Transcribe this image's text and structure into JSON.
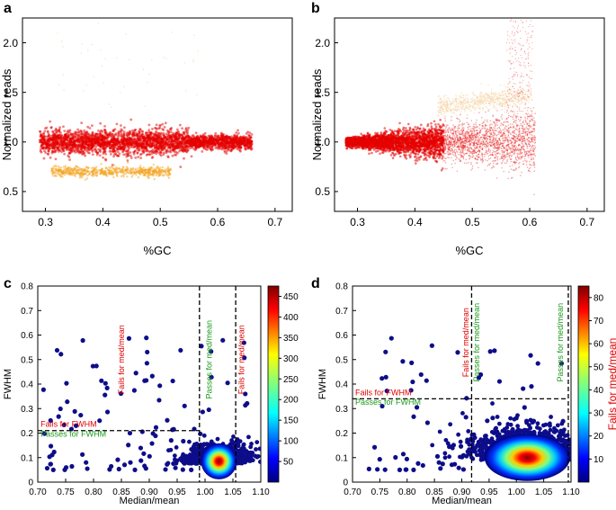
{
  "chart_data": [
    {
      "type": "scatter",
      "panel_label": "a",
      "xlabel": "%GC",
      "ylabel": "Normalized reads",
      "xlim": [
        0.26,
        0.73
      ],
      "ylim": [
        0.3,
        2.25
      ],
      "x_ticks": [
        "0.3",
        "0.4",
        "0.5",
        "0.6",
        "0.7"
      ],
      "x_tick_values": [
        0.3,
        0.4,
        0.5,
        0.6,
        0.7
      ],
      "y_ticks": [
        "0.5",
        "1.0",
        "1.5",
        "2.0"
      ],
      "y_tick_values": [
        0.5,
        1.0,
        1.5,
        2.0
      ],
      "series": [
        {
          "name": "main band",
          "color": "#e60000",
          "x_range": [
            0.29,
            0.66
          ],
          "y_center": 1.0,
          "y_spread": 0.06
        },
        {
          "name": "lower band",
          "color": "#f5a623",
          "x_range": [
            0.31,
            0.52
          ],
          "y_center": 0.7,
          "y_spread": 0.025
        }
      ]
    },
    {
      "type": "scatter",
      "panel_label": "b",
      "xlabel": "%GC",
      "ylabel": "Normalized reads",
      "xlim": [
        0.26,
        0.73
      ],
      "ylim": [
        0.3,
        2.25
      ],
      "x_ticks": [
        "0.3",
        "0.4",
        "0.5",
        "0.6",
        "0.7"
      ],
      "x_tick_values": [
        0.3,
        0.4,
        0.5,
        0.6,
        0.7
      ],
      "y_ticks": [
        "0.5",
        "1.0",
        "1.5",
        "2.0"
      ],
      "y_tick_values": [
        0.5,
        1.0,
        1.5,
        2.0
      ],
      "series": [
        {
          "name": "fanning band",
          "color": "#e60000",
          "x_range": [
            0.28,
            0.61
          ],
          "y_center": 1.0,
          "y_spread_growth": 0.9
        },
        {
          "name": "upper band",
          "color": "#f5d6a8",
          "x_range": [
            0.44,
            0.6
          ],
          "y_center": 1.45,
          "y_spread": 0.05
        }
      ]
    },
    {
      "type": "scatter",
      "panel_label": "c",
      "xlabel": "Median/mean",
      "ylabel": "FWHM",
      "xlim": [
        0.7,
        1.1
      ],
      "ylim": [
        0.0,
        0.8
      ],
      "x_ticks": [
        "0.70",
        "0.75",
        "0.80",
        "0.85",
        "0.90",
        "0.95",
        "1.00",
        "1.05",
        "1.10"
      ],
      "x_tick_values": [
        0.7,
        0.75,
        0.8,
        0.85,
        0.9,
        0.95,
        1.0,
        1.05,
        1.1
      ],
      "y_ticks": [
        "0",
        "0.1",
        "0.2",
        "0.3",
        "0.4",
        "0.5",
        "0.6",
        "0.7",
        "0.8"
      ],
      "y_tick_values": [
        0.0,
        0.1,
        0.2,
        0.3,
        0.4,
        0.5,
        0.6,
        0.7,
        0.8
      ],
      "thresholds": {
        "x": [
          0.99,
          1.055
        ],
        "y": 0.21
      },
      "density_center": [
        1.025,
        0.085
      ],
      "colorbar": {
        "min": 0,
        "max": 475,
        "ticks": [
          "50",
          "100",
          "150",
          "200",
          "250",
          "300",
          "350",
          "400",
          "450"
        ],
        "tick_values": [
          50,
          100,
          150,
          200,
          250,
          300,
          350,
          400,
          450
        ]
      },
      "annotations": [
        {
          "text": "Fails for med/mean",
          "color": "#e00000",
          "x": 0.855,
          "y": 0.5,
          "rotation": "vertical"
        },
        {
          "text": "Passes for med/mean",
          "color": "#1a9a1a",
          "x": 1.012,
          "y": 0.5,
          "rotation": "vertical"
        },
        {
          "text": "Fails for med/mean",
          "color": "#e00000",
          "x": 1.07,
          "y": 0.5,
          "rotation": "vertical"
        },
        {
          "text": "Fails for FWHM",
          "color": "#e00000",
          "x": 0.705,
          "y": 0.225,
          "rotation": "horizontal"
        },
        {
          "text": "Passes for FWHM",
          "color": "#1a9a1a",
          "x": 0.705,
          "y": 0.185,
          "rotation": "horizontal"
        }
      ]
    },
    {
      "type": "scatter",
      "panel_label": "d",
      "xlabel": "Median/mean",
      "ylabel": "FWHM",
      "xlim": [
        0.7,
        1.1
      ],
      "ylim": [
        0.0,
        0.8
      ],
      "x_ticks": [
        "0.70",
        "0.75",
        "0.80",
        "0.85",
        "0.90",
        "0.95",
        "1.00",
        "1.05",
        "1.10"
      ],
      "x_tick_values": [
        0.7,
        0.75,
        0.8,
        0.85,
        0.9,
        0.95,
        1.0,
        1.05,
        1.1
      ],
      "y_ticks": [
        "0",
        "0.1",
        "0.2",
        "0.3",
        "0.4",
        "0.5",
        "0.6",
        "0.7",
        "0.8"
      ],
      "y_tick_values": [
        0.0,
        0.1,
        0.2,
        0.3,
        0.4,
        0.5,
        0.6,
        0.7,
        0.8
      ],
      "thresholds": {
        "x": [
          0.918,
          1.095
        ],
        "y": 0.34
      },
      "density_center": [
        1.02,
        0.1
      ],
      "colorbar": {
        "min": 0,
        "max": 85,
        "ticks": [
          "10",
          "20",
          "30",
          "40",
          "50",
          "60",
          "70",
          "80"
        ],
        "tick_values": [
          10,
          20,
          30,
          40,
          50,
          60,
          70,
          80
        ]
      },
      "annotations": [
        {
          "text": "Fails for med/mean",
          "color": "#e00000",
          "x": 0.912,
          "y": 0.57,
          "rotation": "vertical"
        },
        {
          "text": "Passes for med/mean",
          "color": "#1a9a1a",
          "x": 0.932,
          "y": 0.57,
          "rotation": "vertical"
        },
        {
          "text": "Passes for med/mean",
          "color": "#1a9a1a",
          "x": 1.085,
          "y": 0.57,
          "rotation": "vertical"
        },
        {
          "text": "Fails for med/mean",
          "color": "#e00000",
          "x": 1.115,
          "y": 0.5,
          "rotation": "vertical_large"
        },
        {
          "text": "Fails for FWHM",
          "color": "#e00000",
          "x": 0.705,
          "y": 0.355,
          "rotation": "horizontal"
        },
        {
          "text": "Passes for FWHM",
          "color": "#1a9a1a",
          "x": 0.705,
          "y": 0.315,
          "rotation": "horizontal"
        }
      ]
    }
  ]
}
